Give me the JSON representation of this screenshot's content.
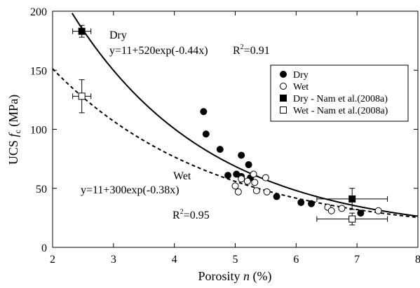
{
  "chart_data": {
    "type": "scatter",
    "x_axis": {
      "label_prefix": "Porosity ",
      "label_symbol": "n",
      "label_suffix": " (%)",
      "range": [
        2,
        8
      ],
      "ticks": [
        2,
        3,
        4,
        5,
        6,
        7,
        8
      ]
    },
    "y_axis": {
      "label_prefix": "UCS ",
      "label_symbol": "f",
      "label_subscript": "c",
      "label_suffix": " (MPa)",
      "range": [
        0,
        200
      ],
      "ticks": [
        0,
        50,
        100,
        150,
        200
      ]
    },
    "grid": false,
    "legend_position": "right",
    "series": [
      {
        "name": "Dry",
        "marker": "filled-circle",
        "points": [
          [
            4.48,
            115
          ],
          [
            4.52,
            96
          ],
          [
            4.75,
            83
          ],
          [
            4.88,
            61
          ],
          [
            5.02,
            62
          ],
          [
            5.1,
            78
          ],
          [
            5.1,
            60
          ],
          [
            5.22,
            70
          ],
          [
            5.25,
            59
          ],
          [
            5.68,
            43
          ],
          [
            6.08,
            38
          ],
          [
            6.25,
            37
          ],
          [
            7.06,
            29
          ]
        ]
      },
      {
        "name": "Wet",
        "marker": "open-circle",
        "points": [
          [
            5.0,
            52
          ],
          [
            5.05,
            47
          ],
          [
            5.1,
            58
          ],
          [
            5.2,
            56
          ],
          [
            5.3,
            62
          ],
          [
            5.32,
            55
          ],
          [
            5.35,
            48
          ],
          [
            5.5,
            59
          ],
          [
            5.52,
            47
          ],
          [
            6.52,
            34
          ],
          [
            6.58,
            31
          ],
          [
            6.75,
            33
          ],
          [
            7.35,
            31
          ]
        ]
      },
      {
        "name": "Dry - Nam et al.(2008a)",
        "marker": "filled-square",
        "points": [
          [
            2.48,
            183
          ]
        ],
        "xerr": [
          [
            0.15,
            0.15
          ]
        ],
        "yerr": [
          [
            5,
            5
          ]
        ]
      },
      {
        "name": "Wet - Nam et al.(2008a)",
        "marker": "open-square",
        "points": [
          [
            2.48,
            128
          ],
          [
            6.92,
            24
          ]
        ],
        "xerr": [
          [
            0.15,
            0.15
          ],
          [
            0.58,
            0.58
          ]
        ],
        "yerr": [
          [
            14,
            14
          ],
          [
            5,
            5
          ]
        ]
      },
      {
        "name": "Dry - Nam et al.(2008a)",
        "marker": "filled-square",
        "points": [
          [
            6.92,
            41
          ]
        ],
        "xerr": [
          [
            0.58,
            0.58
          ]
        ],
        "yerr": [
          [
            9,
            9
          ]
        ]
      }
    ],
    "fits": [
      {
        "applies_to": "Dry",
        "style": "solid",
        "a": 11,
        "b": 520,
        "k": -0.44,
        "name": "Dry",
        "equation": "y=11+520exp(-0.44x)",
        "r2_prefix": "R",
        "r2_sup": "2",
        "r2_value": "=0.91"
      },
      {
        "applies_to": "Wet",
        "style": "dashed",
        "a": 11,
        "b": 300,
        "k": -0.38,
        "name": "Wet",
        "equation": "y=11+300exp(-0.38x)",
        "r2_prefix": "R",
        "r2_sup": "2",
        "r2_value": "=0.95"
      }
    ],
    "legend": [
      {
        "label": "Dry",
        "marker": "filled-circle"
      },
      {
        "label": "Wet",
        "marker": "open-circle"
      },
      {
        "label": "Dry - Nam et al.(2008a)",
        "marker": "filled-square"
      },
      {
        "label": "Wet - Nam et al.(2008a)",
        "marker": "open-square"
      }
    ]
  }
}
